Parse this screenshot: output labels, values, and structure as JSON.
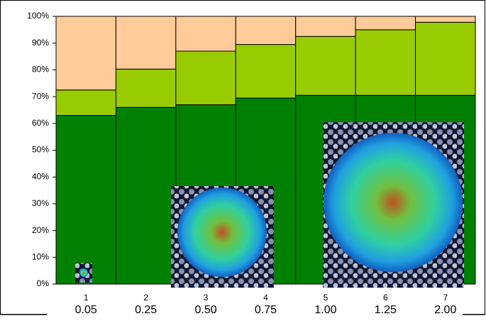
{
  "chart_data": {
    "type": "stacked_bar_100",
    "categories": [
      "1",
      "2",
      "3",
      "4",
      "5",
      "6",
      "7"
    ],
    "labels": [
      "0.05",
      "0.25",
      "0.50",
      "0.75",
      "1.00",
      "1.25",
      "2.00"
    ],
    "series": [
      {
        "color": "#008000",
        "values": [
          63,
          66,
          67,
          69.5,
          70.5,
          70.5,
          70.5
        ]
      },
      {
        "color": "#99cc00",
        "values": [
          9.5,
          14.3,
          20,
          20,
          22,
          24.5,
          27.3
        ]
      },
      {
        "color": "#ffcc99",
        "values": [
          27.5,
          19.7,
          13,
          10.5,
          7.5,
          5,
          2.2
        ]
      }
    ],
    "ylim": [
      0,
      100
    ],
    "yticks": [
      {
        "value": 0,
        "label": "0%"
      },
      {
        "value": 10,
        "label": "10%"
      },
      {
        "value": 20,
        "label": "20%"
      },
      {
        "value": 30,
        "label": "30%"
      },
      {
        "value": 40,
        "label": "40%"
      },
      {
        "value": 50,
        "label": "50%"
      },
      {
        "value": 60,
        "label": "60%"
      },
      {
        "value": 70,
        "label": "70%"
      },
      {
        "value": 80,
        "label": "80%"
      },
      {
        "value": 90,
        "label": "90%"
      },
      {
        "value": 100,
        "label": "100%"
      }
    ]
  }
}
